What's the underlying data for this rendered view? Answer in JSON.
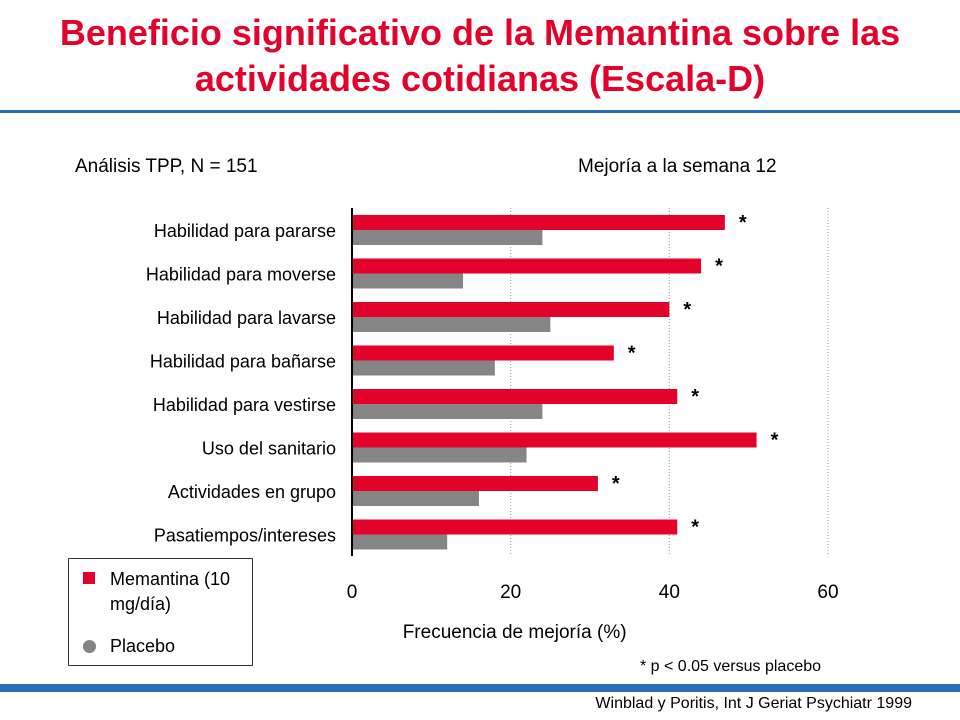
{
  "title": "Beneficio significativo de la Memantina sobre las actividades cotidianas (Escala-D)",
  "subtitle_left": "Análisis TPP, N = 151",
  "subtitle_right": "Mejoría a la semana 12",
  "legend": {
    "memantine_label": "Memantina (10 mg/día)",
    "placebo_label": "Placebo"
  },
  "footnote": "* p < 0.05 versus placebo",
  "source": "Winblad y Poritis, Int J Geriat Psychiatr 1999",
  "colors": {
    "memantine": "#e3022a",
    "placebo": "#858585",
    "title": "#e3022a",
    "rule": "#2a6fb5"
  },
  "chart_data": {
    "type": "bar",
    "orientation": "horizontal",
    "categories": [
      "Habilidad para pararse",
      "Habilidad para moverse",
      "Habilidad para lavarse",
      "Habilidad para bañarse",
      "Habilidad para vestirse",
      "Uso del sanitario",
      "Actividades en grupo",
      "Pasatiempos/intereses"
    ],
    "series": [
      {
        "name": "Memantina (10 mg/día)",
        "values": [
          47,
          44,
          40,
          33,
          41,
          51,
          31,
          41
        ]
      },
      {
        "name": "Placebo",
        "values": [
          24,
          14,
          25,
          18,
          24,
          22,
          16,
          12
        ]
      }
    ],
    "annotations": [
      "*",
      "*",
      "*",
      "*",
      "*",
      "*",
      "*",
      "*"
    ],
    "xlabel": "Frecuencia de mejoría (%)",
    "xticks": [
      "0",
      "20",
      "40",
      "60"
    ],
    "xlim": [
      0,
      60
    ],
    "grid": true,
    "legend_position": "bottom-left"
  }
}
